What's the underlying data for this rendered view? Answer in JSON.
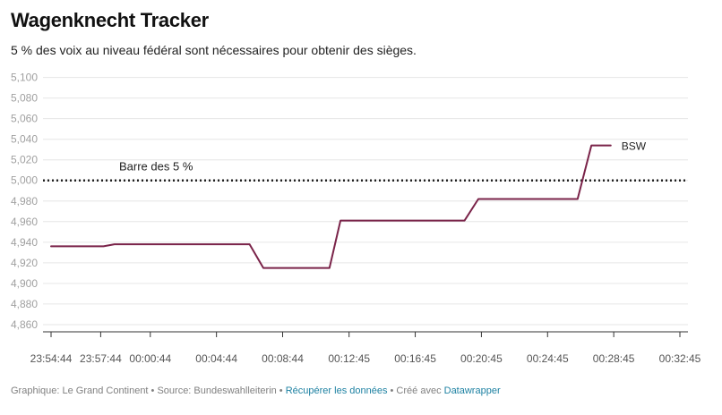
{
  "title": "Wagenknecht Tracker",
  "subtitle": "5 % des voix au niveau fédéral sont nécessaires pour obtenir des sièges.",
  "footer": {
    "source_text": "Graphique: Le Grand Continent • Source: Bundeswahlleiterin • ",
    "data_link": "Récupérer les données",
    "sep": " • Créé avec ",
    "tool_link": "Datawrapper"
  },
  "colors": {
    "line": "#7a2349",
    "threshold": "#222222",
    "grid": "#e6e6e6"
  },
  "chart_data": {
    "type": "line",
    "y_tick_labels": [
      "5,100",
      "5,080",
      "5,060",
      "5,040",
      "5,020",
      "5,000",
      "4,980",
      "4,960",
      "4,940",
      "4,920",
      "4,900",
      "4,880",
      "4,860"
    ],
    "y_ticks": [
      5.1,
      5.08,
      5.06,
      5.04,
      5.02,
      5.0,
      4.98,
      4.96,
      4.94,
      4.92,
      4.9,
      4.88,
      4.86
    ],
    "ylim": [
      4.853,
      5.104
    ],
    "x_tick_labels": [
      "23:54:44",
      "23:57:44",
      "00:00:44",
      "00:04:44",
      "00:08:44",
      "00:12:45",
      "00:16:45",
      "00:20:45",
      "00:24:45",
      "00:28:45",
      "00:32:45"
    ],
    "x_tick_seconds": [
      86084,
      86264,
      86444,
      86684,
      86924,
      87165,
      87405,
      87645,
      87885,
      88125,
      88365
    ],
    "xlim": [
      86084,
      88365
    ],
    "series": [
      {
        "name": "BSW",
        "x_seconds": [
          86084,
          86274,
          86314,
          86804,
          86854,
          87034,
          87094,
          87134,
          87584,
          87634,
          87994,
          88044,
          88114
        ],
        "values": [
          4.936,
          4.936,
          4.938,
          4.938,
          4.915,
          4.915,
          4.915,
          4.961,
          4.961,
          4.982,
          4.982,
          5.034,
          5.034
        ]
      }
    ],
    "threshold": {
      "value": 5.0,
      "label": "Barre des 5 %"
    },
    "grid": true,
    "legend": "direct label at line end"
  }
}
